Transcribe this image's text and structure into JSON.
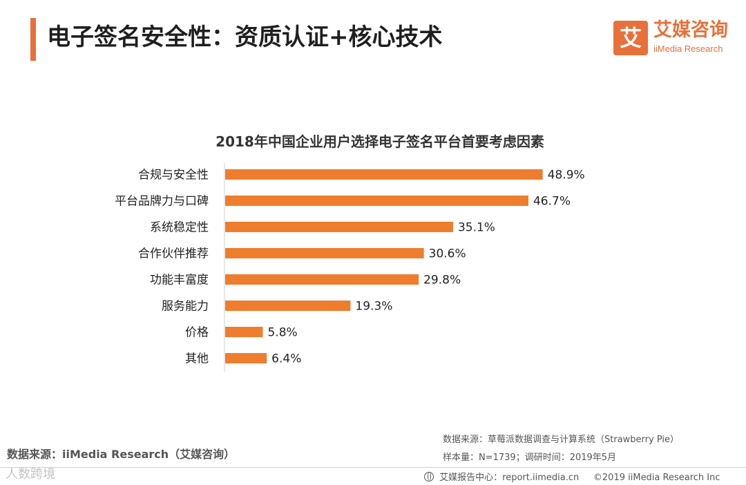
{
  "header": {
    "title": "电子签名安全性：资质认证+核心技术",
    "logo_mark": "艾",
    "logo_cn": "艾媒咨询",
    "logo_en": "iiMedia Research"
  },
  "colors": {
    "accent": "#e8703a",
    "bar": "#ee7d2e"
  },
  "chart_data": {
    "type": "bar",
    "orientation": "horizontal",
    "title": "2018年中国企业用户选择电子签名平台首要考虑因素",
    "categories": [
      "合规与安全性",
      "平台品牌力与口碑",
      "系统稳定性",
      "合作伙伴推荐",
      "功能丰富度",
      "服务能力",
      "价格",
      "其他"
    ],
    "values": [
      48.9,
      46.7,
      35.1,
      30.6,
      29.8,
      19.3,
      5.8,
      6.4
    ],
    "value_labels": [
      "48.9%",
      "46.7%",
      "35.1%",
      "30.6%",
      "29.8%",
      "19.3%",
      "5.8%",
      "6.4%"
    ],
    "unit": "%",
    "xlim": [
      0,
      50
    ],
    "xlabel": "",
    "ylabel": ""
  },
  "footer": {
    "source_left": "数据来源：iiMedia Research（艾媒咨询）",
    "source_right_line1": "数据来源：草莓派数据调查与计算系统（Strawberry Pie）",
    "source_right_line2": "样本量：N=1739；调研时间：2019年5月",
    "report_center": "艾媒报告中心：report.iimedia.cn",
    "copyright": "©2019  iiMedia Research  Inc",
    "watermark": "人数跨境"
  }
}
